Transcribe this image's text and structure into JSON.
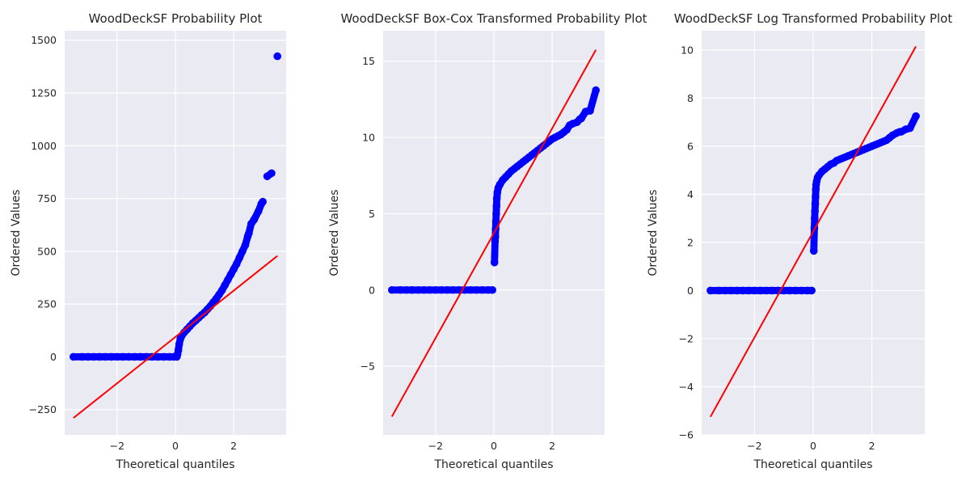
{
  "chart_data": [
    {
      "type": "scatter",
      "title": "WoodDeckSF Probability Plot",
      "xlabel": "Theoretical quantiles",
      "ylabel": "Ordered Values",
      "xlim": [
        -3.8,
        3.8
      ],
      "ylim": [
        -370,
        1545
      ],
      "xticks": [
        -2,
        0,
        2
      ],
      "xtick_labels": [
        "−2",
        "0",
        "2"
      ],
      "yticks": [
        -250,
        0,
        250,
        500,
        750,
        1000,
        1250,
        1500
      ],
      "ytick_labels": [
        "−250",
        "0",
        "250",
        "500",
        "750",
        "1000",
        "1250",
        "1500"
      ],
      "grid": true,
      "series": [
        {
          "kind": "points",
          "color": "#0000ff",
          "points": [
            [
              -3.5,
              0
            ],
            [
              -3.2,
              0
            ],
            [
              -3.0,
              0
            ],
            [
              -2.8,
              0
            ],
            [
              -2.6,
              0
            ],
            [
              -2.4,
              0
            ],
            [
              -2.2,
              0
            ],
            [
              -2.0,
              0
            ],
            [
              -1.8,
              0
            ],
            [
              -1.6,
              0
            ],
            [
              -1.4,
              0
            ],
            [
              -1.2,
              0
            ],
            [
              -1.0,
              0
            ],
            [
              -0.8,
              0
            ],
            [
              -0.6,
              0
            ],
            [
              -0.4,
              0
            ],
            [
              -0.2,
              0
            ],
            [
              -0.05,
              0
            ],
            [
              0.05,
              0
            ],
            [
              0.07,
              10
            ],
            [
              0.1,
              30
            ],
            [
              0.13,
              60
            ],
            [
              0.17,
              85
            ],
            [
              0.22,
              100
            ],
            [
              0.3,
              115
            ],
            [
              0.4,
              130
            ],
            [
              0.5,
              145
            ],
            [
              0.6,
              160
            ],
            [
              0.7,
              172
            ],
            [
              0.8,
              185
            ],
            [
              0.9,
              198
            ],
            [
              1.0,
              210
            ],
            [
              1.1,
              225
            ],
            [
              1.2,
              240
            ],
            [
              1.3,
              258
            ],
            [
              1.4,
              275
            ],
            [
              1.5,
              295
            ],
            [
              1.6,
              315
            ],
            [
              1.7,
              340
            ],
            [
              1.8,
              365
            ],
            [
              1.9,
              390
            ],
            [
              2.0,
              415
            ],
            [
              2.1,
              440
            ],
            [
              2.2,
              470
            ],
            [
              2.3,
              500
            ],
            [
              2.4,
              530
            ],
            [
              2.48,
              570
            ],
            [
              2.52,
              585
            ],
            [
              2.6,
              630
            ],
            [
              2.7,
              650
            ],
            [
              2.85,
              690
            ],
            [
              2.95,
              725
            ],
            [
              3.0,
              735
            ],
            [
              3.15,
              855
            ],
            [
              3.3,
              870
            ],
            [
              3.5,
              1424
            ]
          ]
        },
        {
          "kind": "fit_line",
          "color": "#ff0000",
          "points": [
            [
              -3.5,
              -290
            ],
            [
              3.5,
              478
            ]
          ]
        }
      ]
    },
    {
      "type": "scatter",
      "title": "WoodDeckSF Box-Cox Transformed Probability Plot",
      "xlabel": "Theoretical quantiles",
      "ylabel": "Ordered Values",
      "xlim": [
        -3.8,
        3.8
      ],
      "ylim": [
        -9.5,
        17.0
      ],
      "xticks": [
        -2,
        0,
        2
      ],
      "xtick_labels": [
        "−2",
        "0",
        "2"
      ],
      "yticks": [
        -5,
        0,
        5,
        10,
        15
      ],
      "ytick_labels": [
        "−5",
        "0",
        "5",
        "10",
        "15"
      ],
      "grid": true,
      "series": [
        {
          "kind": "points",
          "color": "#0000ff",
          "points": [
            [
              -3.5,
              0
            ],
            [
              -3.2,
              0
            ],
            [
              -3.0,
              0
            ],
            [
              -2.8,
              0
            ],
            [
              -2.6,
              0
            ],
            [
              -2.4,
              0
            ],
            [
              -2.2,
              0
            ],
            [
              -2.0,
              0
            ],
            [
              -1.8,
              0
            ],
            [
              -1.6,
              0
            ],
            [
              -1.4,
              0
            ],
            [
              -1.2,
              0
            ],
            [
              -1.0,
              0
            ],
            [
              -0.8,
              0
            ],
            [
              -0.6,
              0
            ],
            [
              -0.4,
              0
            ],
            [
              -0.2,
              0
            ],
            [
              -0.05,
              0
            ],
            [
              0.02,
              1.8
            ],
            [
              0.04,
              3.2
            ],
            [
              0.05,
              3.5
            ],
            [
              0.06,
              4.0
            ],
            [
              0.07,
              4.5
            ],
            [
              0.08,
              5.0
            ],
            [
              0.09,
              5.5
            ],
            [
              0.1,
              6.0
            ],
            [
              0.12,
              6.4
            ],
            [
              0.15,
              6.7
            ],
            [
              0.2,
              6.9
            ],
            [
              0.3,
              7.2
            ],
            [
              0.4,
              7.4
            ],
            [
              0.5,
              7.6
            ],
            [
              0.6,
              7.8
            ],
            [
              0.7,
              7.95
            ],
            [
              0.8,
              8.1
            ],
            [
              0.9,
              8.25
            ],
            [
              1.0,
              8.4
            ],
            [
              1.1,
              8.55
            ],
            [
              1.2,
              8.7
            ],
            [
              1.3,
              8.85
            ],
            [
              1.4,
              9.0
            ],
            [
              1.5,
              9.15
            ],
            [
              1.6,
              9.3
            ],
            [
              1.7,
              9.45
            ],
            [
              1.8,
              9.6
            ],
            [
              1.9,
              9.75
            ],
            [
              2.0,
              9.9
            ],
            [
              2.1,
              10.0
            ],
            [
              2.2,
              10.1
            ],
            [
              2.3,
              10.2
            ],
            [
              2.4,
              10.35
            ],
            [
              2.5,
              10.5
            ],
            [
              2.6,
              10.8
            ],
            [
              2.7,
              10.9
            ],
            [
              2.85,
              11.0
            ],
            [
              2.95,
              11.2
            ],
            [
              3.0,
              11.25
            ],
            [
              3.15,
              11.7
            ],
            [
              3.3,
              11.75
            ],
            [
              3.5,
              13.1
            ]
          ]
        },
        {
          "kind": "fit_line",
          "color": "#ff0000",
          "points": [
            [
              -3.5,
              -8.3
            ],
            [
              3.5,
              15.75
            ]
          ]
        }
      ]
    },
    {
      "type": "scatter",
      "title": "WoodDeckSF Log Transformed Probability Plot",
      "xlabel": "Theoretical quantiles",
      "ylabel": "Ordered Values",
      "xlim": [
        -3.8,
        3.8
      ],
      "ylim": [
        -6.0,
        10.8
      ],
      "xticks": [
        -2,
        0,
        2
      ],
      "xtick_labels": [
        "−2",
        "0",
        "2"
      ],
      "yticks": [
        -6,
        -4,
        -2,
        0,
        2,
        4,
        6,
        8,
        10
      ],
      "ytick_labels": [
        "−6",
        "−4",
        "−2",
        "0",
        "2",
        "4",
        "6",
        "8",
        "10"
      ],
      "grid": true,
      "series": [
        {
          "kind": "points",
          "color": "#0000ff",
          "points": [
            [
              -3.5,
              0
            ],
            [
              -3.2,
              0
            ],
            [
              -3.0,
              0
            ],
            [
              -2.8,
              0
            ],
            [
              -2.6,
              0
            ],
            [
              -2.4,
              0
            ],
            [
              -2.2,
              0
            ],
            [
              -2.0,
              0
            ],
            [
              -1.8,
              0
            ],
            [
              -1.6,
              0
            ],
            [
              -1.4,
              0
            ],
            [
              -1.2,
              0
            ],
            [
              -1.0,
              0
            ],
            [
              -0.8,
              0
            ],
            [
              -0.6,
              0
            ],
            [
              -0.4,
              0
            ],
            [
              -0.2,
              0
            ],
            [
              -0.05,
              0
            ],
            [
              0.02,
              1.65
            ],
            [
              0.04,
              2.6
            ],
            [
              0.05,
              3.0
            ],
            [
              0.06,
              3.3
            ],
            [
              0.07,
              3.6
            ],
            [
              0.08,
              3.9
            ],
            [
              0.09,
              4.2
            ],
            [
              0.1,
              4.4
            ],
            [
              0.12,
              4.55
            ],
            [
              0.15,
              4.7
            ],
            [
              0.2,
              4.8
            ],
            [
              0.3,
              4.95
            ],
            [
              0.4,
              5.05
            ],
            [
              0.5,
              5.15
            ],
            [
              0.6,
              5.25
            ],
            [
              0.7,
              5.3
            ],
            [
              0.8,
              5.4
            ],
            [
              0.9,
              5.45
            ],
            [
              1.0,
              5.5
            ],
            [
              1.1,
              5.55
            ],
            [
              1.2,
              5.6
            ],
            [
              1.3,
              5.65
            ],
            [
              1.4,
              5.7
            ],
            [
              1.5,
              5.75
            ],
            [
              1.6,
              5.8
            ],
            [
              1.7,
              5.85
            ],
            [
              1.8,
              5.9
            ],
            [
              1.9,
              5.95
            ],
            [
              2.0,
              6.0
            ],
            [
              2.1,
              6.05
            ],
            [
              2.2,
              6.1
            ],
            [
              2.3,
              6.15
            ],
            [
              2.4,
              6.2
            ],
            [
              2.5,
              6.25
            ],
            [
              2.6,
              6.35
            ],
            [
              2.7,
              6.45
            ],
            [
              2.85,
              6.55
            ],
            [
              2.95,
              6.6
            ],
            [
              3.0,
              6.6
            ],
            [
              3.15,
              6.7
            ],
            [
              3.3,
              6.75
            ],
            [
              3.5,
              7.25
            ]
          ]
        },
        {
          "kind": "fit_line",
          "color": "#ff0000",
          "points": [
            [
              -3.5,
              -5.25
            ],
            [
              3.5,
              10.15
            ]
          ]
        }
      ]
    }
  ]
}
